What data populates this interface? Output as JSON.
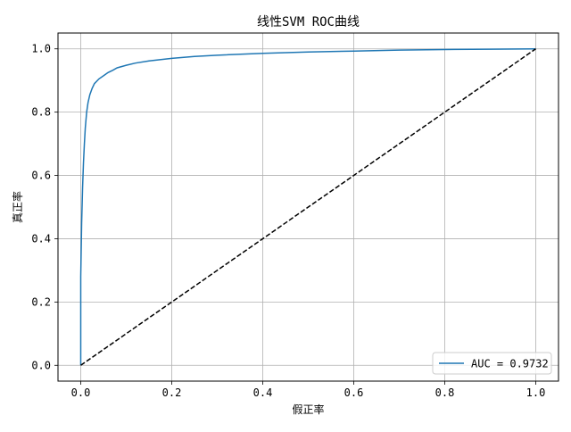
{
  "chart_data": {
    "type": "line",
    "title": "线性SVM ROC曲线",
    "xlabel": "假正率",
    "ylabel": "真正率",
    "xlim": [
      -0.05,
      1.05
    ],
    "ylim": [
      -0.05,
      1.05
    ],
    "xticks": [
      0.0,
      0.2,
      0.4,
      0.6,
      0.8,
      1.0
    ],
    "yticks": [
      0.0,
      0.2,
      0.4,
      0.6,
      0.8,
      1.0
    ],
    "xtick_labels": [
      "0.0",
      "0.2",
      "0.4",
      "0.6",
      "0.8",
      "1.0"
    ],
    "ytick_labels": [
      "0.0",
      "0.2",
      "0.4",
      "0.6",
      "0.8",
      "1.0"
    ],
    "grid": true,
    "legend_position": "bottom-right",
    "series": [
      {
        "name": "AUC = 0.9732",
        "color": "#1f77b4",
        "style": "solid",
        "x": [
          0.0,
          0.0,
          0.002,
          0.004,
          0.006,
          0.008,
          0.01,
          0.013,
          0.016,
          0.02,
          0.025,
          0.03,
          0.04,
          0.05,
          0.06,
          0.07,
          0.08,
          0.1,
          0.12,
          0.15,
          0.2,
          0.25,
          0.3,
          0.4,
          0.5,
          0.6,
          0.7,
          0.8,
          0.9,
          1.0
        ],
        "y": [
          0.0,
          0.28,
          0.45,
          0.56,
          0.64,
          0.7,
          0.75,
          0.8,
          0.83,
          0.855,
          0.875,
          0.89,
          0.905,
          0.915,
          0.925,
          0.932,
          0.94,
          0.948,
          0.955,
          0.962,
          0.97,
          0.976,
          0.98,
          0.986,
          0.99,
          0.993,
          0.996,
          0.998,
          0.999,
          1.0
        ]
      },
      {
        "name": "",
        "color": "#000000",
        "style": "dashed",
        "x": [
          0.0,
          1.0
        ],
        "y": [
          0.0,
          1.0
        ]
      }
    ]
  }
}
